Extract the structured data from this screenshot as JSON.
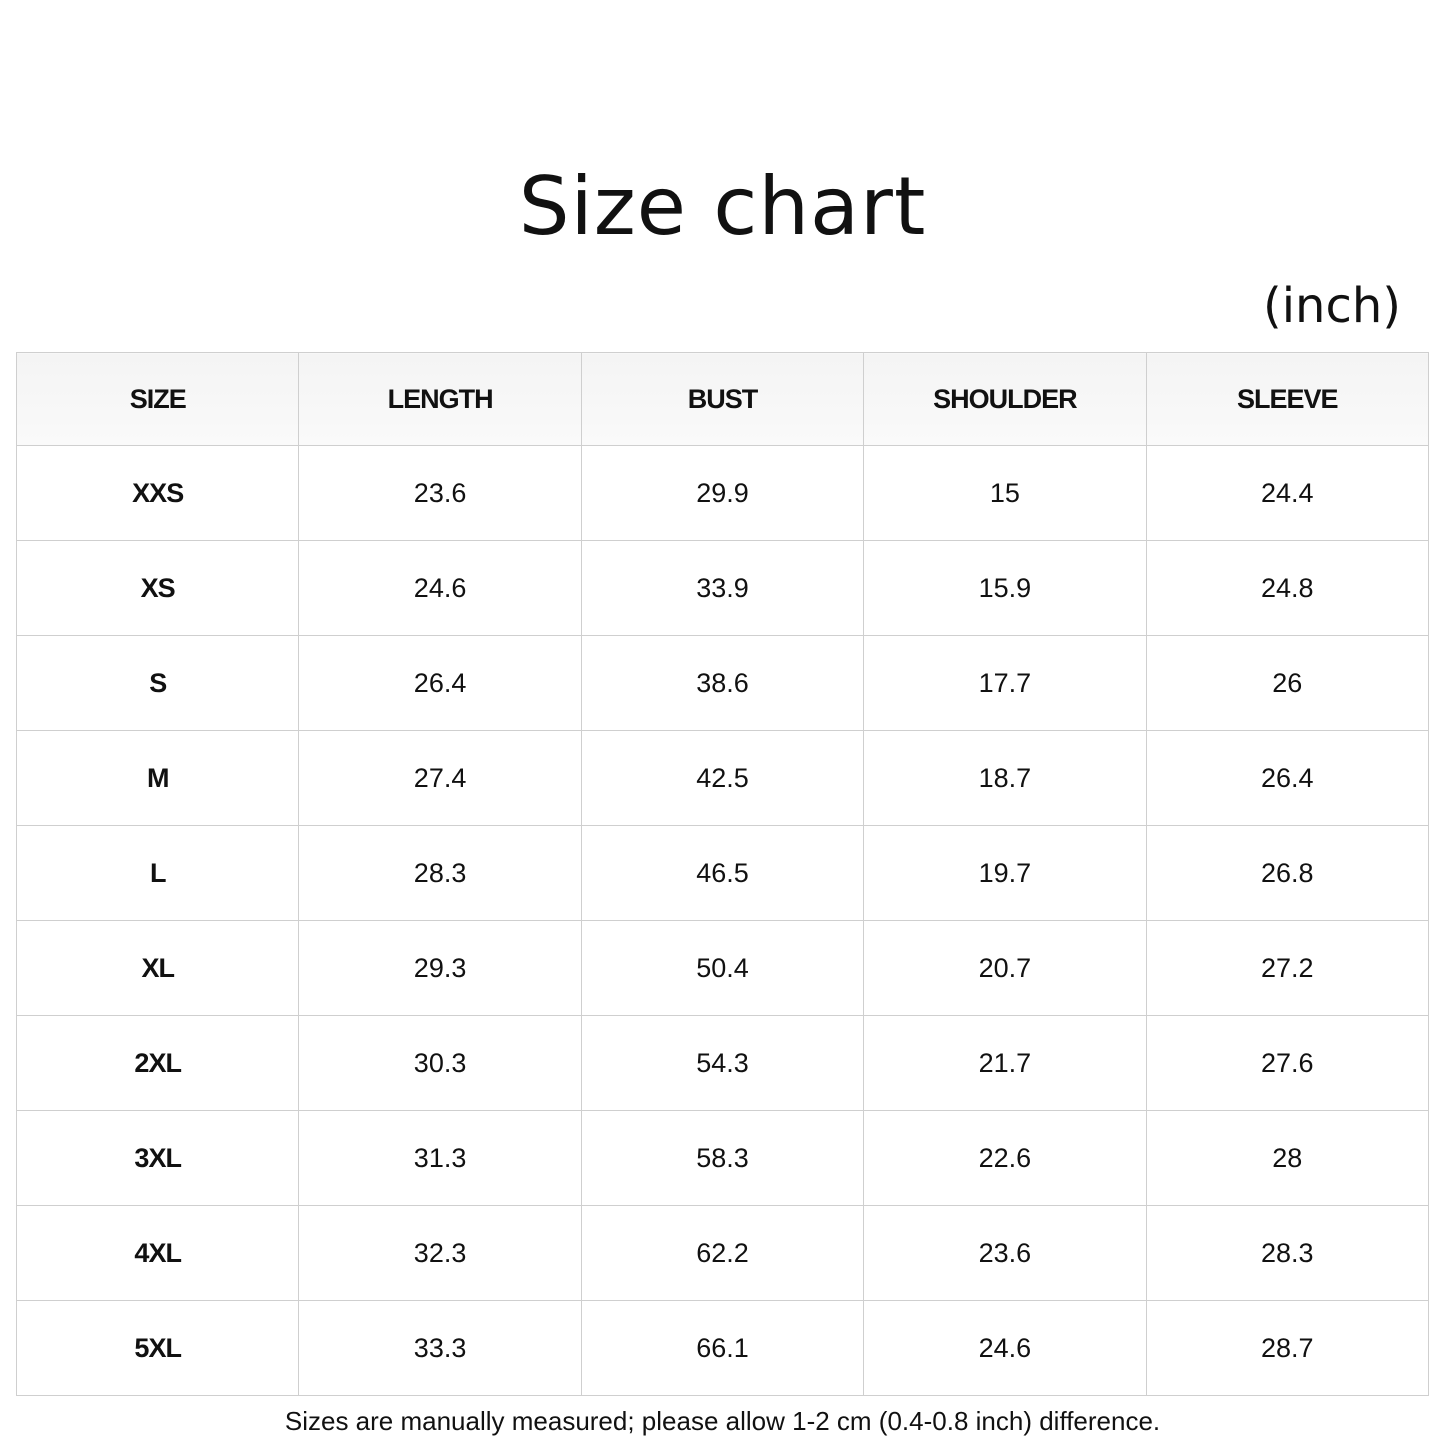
{
  "title": "Size chart",
  "unit": "(inch)",
  "table": {
    "headers": [
      "SIZE",
      "LENGTH",
      "BUST",
      "SHOULDER",
      "SLEEVE"
    ],
    "rows": [
      [
        "XXS",
        "23.6",
        "29.9",
        "15",
        "24.4"
      ],
      [
        "XS",
        "24.6",
        "33.9",
        "15.9",
        "24.8"
      ],
      [
        "S",
        "26.4",
        "38.6",
        "17.7",
        "26"
      ],
      [
        "M",
        "27.4",
        "42.5",
        "18.7",
        "26.4"
      ],
      [
        "L",
        "28.3",
        "46.5",
        "19.7",
        "26.8"
      ],
      [
        "XL",
        "29.3",
        "50.4",
        "20.7",
        "27.2"
      ],
      [
        "2XL",
        "30.3",
        "54.3",
        "21.7",
        "27.6"
      ],
      [
        "3XL",
        "31.3",
        "58.3",
        "22.6",
        "28"
      ],
      [
        "4XL",
        "32.3",
        "62.2",
        "23.6",
        "28.3"
      ],
      [
        "5XL",
        "33.3",
        "66.1",
        "24.6",
        "28.7"
      ]
    ]
  },
  "note": "Sizes are manually measured; please allow 1-2 cm (0.4-0.8 inch) difference."
}
